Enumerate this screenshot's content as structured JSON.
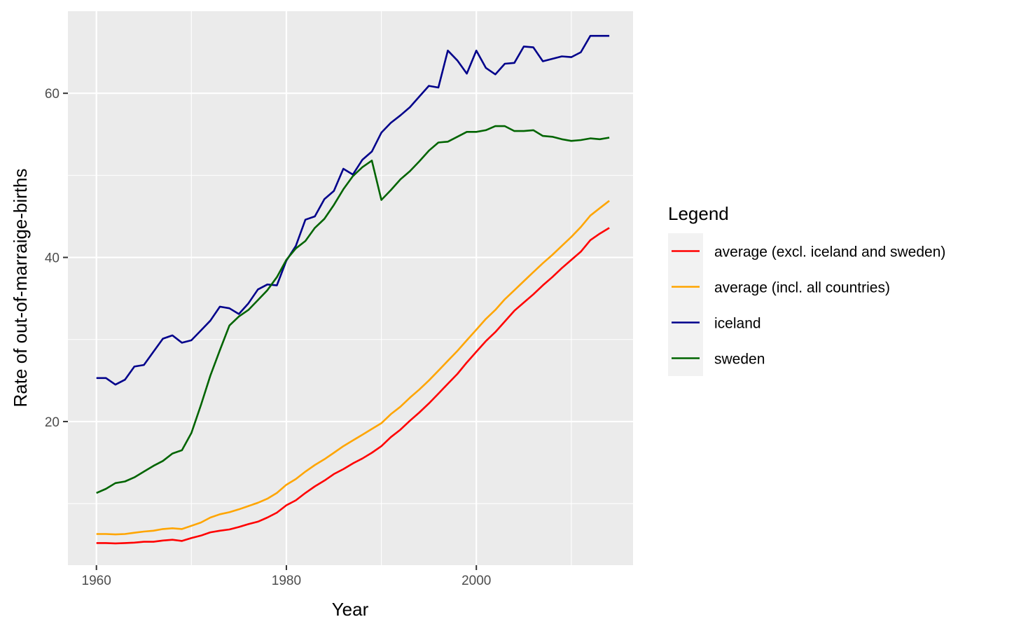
{
  "chart_data": {
    "type": "line",
    "xlabel": "Year",
    "ylabel": "Rate of out-of-marraige-births",
    "xlim": [
      1957,
      2016.5
    ],
    "ylim": [
      2.5,
      70
    ],
    "x_ticks": [
      1960,
      1980,
      2000
    ],
    "x_minor_ticks": [
      1970,
      1990,
      2010
    ],
    "y_ticks": [
      20,
      40,
      60
    ],
    "y_minor_ticks": [
      10,
      30,
      50
    ],
    "x_tick_labels": [
      "1960",
      "1980",
      "2000"
    ],
    "y_tick_labels": [
      "20",
      "40",
      "60"
    ],
    "grid": true,
    "legend": {
      "title": "Legend",
      "position": "right"
    },
    "x": [
      1960,
      1961,
      1962,
      1963,
      1964,
      1965,
      1966,
      1967,
      1968,
      1969,
      1970,
      1971,
      1972,
      1973,
      1974,
      1975,
      1976,
      1977,
      1978,
      1979,
      1980,
      1981,
      1982,
      1983,
      1984,
      1985,
      1986,
      1987,
      1988,
      1989,
      1990,
      1991,
      1992,
      1993,
      1994,
      1995,
      1996,
      1997,
      1998,
      1999,
      2000,
      2001,
      2002,
      2003,
      2004,
      2005,
      2006,
      2007,
      2008,
      2009,
      2010,
      2011,
      2012,
      2013,
      2014
    ],
    "series": [
      {
        "name": "average (excl. iceland and sweden)",
        "color": "#ff0000",
        "values": [
          5.2,
          5.2,
          5.15,
          5.2,
          5.25,
          5.35,
          5.35,
          5.5,
          5.6,
          5.45,
          5.8,
          6.1,
          6.5,
          6.7,
          6.85,
          7.15,
          7.5,
          7.8,
          8.3,
          8.9,
          9.8,
          10.4,
          11.3,
          12.1,
          12.8,
          13.6,
          14.2,
          14.9,
          15.5,
          16.2,
          17.0,
          18.1,
          19.0,
          20.1,
          21.1,
          22.2,
          23.4,
          24.6,
          25.8,
          27.2,
          28.5,
          29.8,
          30.9,
          32.2,
          33.5,
          34.5,
          35.5,
          36.6,
          37.6,
          38.7,
          39.7,
          40.7,
          42.1,
          42.9,
          43.6
        ]
      },
      {
        "name": "average (incl. all countries)",
        "color": "#ffa500",
        "values": [
          6.3,
          6.3,
          6.25,
          6.3,
          6.45,
          6.6,
          6.7,
          6.9,
          7.0,
          6.9,
          7.3,
          7.7,
          8.3,
          8.7,
          8.95,
          9.3,
          9.7,
          10.1,
          10.6,
          11.3,
          12.3,
          13.0,
          13.9,
          14.7,
          15.4,
          16.2,
          17.0,
          17.7,
          18.4,
          19.1,
          19.8,
          20.9,
          21.8,
          22.9,
          23.9,
          25.0,
          26.2,
          27.4,
          28.6,
          29.9,
          31.2,
          32.5,
          33.6,
          34.9,
          36.0,
          37.1,
          38.2,
          39.3,
          40.3,
          41.4,
          42.5,
          43.7,
          45.1,
          46.0,
          46.9
        ]
      },
      {
        "name": "iceland",
        "color": "#00008b",
        "values": [
          25.3,
          25.3,
          24.5,
          25.1,
          26.7,
          26.9,
          28.5,
          30.1,
          30.5,
          29.6,
          29.9,
          31.1,
          32.3,
          34.0,
          33.8,
          33.1,
          34.4,
          36.1,
          36.7,
          36.6,
          39.6,
          41.4,
          44.6,
          45.0,
          47.1,
          48.1,
          50.8,
          50.1,
          51.9,
          52.9,
          55.2,
          56.4,
          57.3,
          58.3,
          59.6,
          60.9,
          60.7,
          65.2,
          64.0,
          62.4,
          65.2,
          63.1,
          62.3,
          63.6,
          63.7,
          65.7,
          65.6,
          63.9,
          64.2,
          64.5,
          64.4,
          65.0,
          67.0,
          67.0,
          67.0
        ]
      },
      {
        "name": "sweden",
        "color": "#006400",
        "values": [
          11.3,
          11.8,
          12.5,
          12.7,
          13.2,
          13.9,
          14.6,
          15.2,
          16.1,
          16.5,
          18.6,
          22.0,
          25.6,
          28.7,
          31.7,
          32.8,
          33.6,
          34.8,
          36.0,
          37.6,
          39.7,
          41.1,
          42.0,
          43.6,
          44.7,
          46.4,
          48.3,
          49.9,
          51.0,
          51.8,
          47.0,
          48.2,
          49.5,
          50.5,
          51.7,
          53.0,
          54.0,
          54.1,
          54.7,
          55.3,
          55.3,
          55.5,
          56.0,
          56.0,
          55.4,
          55.4,
          55.5,
          54.8,
          54.7,
          54.4,
          54.2,
          54.3,
          54.5,
          54.4,
          54.6
        ]
      }
    ]
  }
}
